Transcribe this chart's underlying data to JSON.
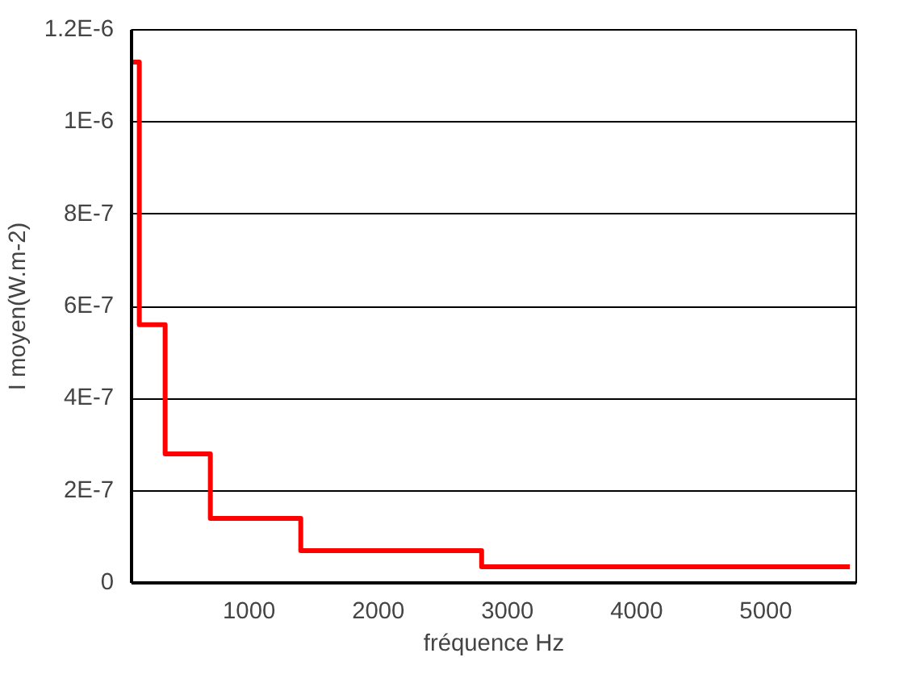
{
  "chart_data": {
    "type": "step",
    "xlabel": "fréquence Hz",
    "ylabel": "I moyen(W.m-2)",
    "x": [
      90,
      150,
      350,
      700,
      1400,
      2800,
      5650
    ],
    "series": [
      {
        "color": "#ff0000",
        "values": [
          1.13e-06,
          5.6e-07,
          2.8e-07,
          1.4e-07,
          7e-08,
          3.5e-08,
          3.5e-08
        ]
      }
    ],
    "xlim": [
      90,
      5700
    ],
    "xticks": [
      1000,
      2000,
      3000,
      4000,
      5000
    ],
    "ylim": [
      0,
      1.2e-06
    ],
    "yticks": [
      {
        "value": 0,
        "label": "0"
      },
      {
        "value": 2e-07,
        "label": "2E-7"
      },
      {
        "value": 4e-07,
        "label": "4E-7"
      },
      {
        "value": 6e-07,
        "label": "6E-7"
      },
      {
        "value": 8e-07,
        "label": "8E-7"
      },
      {
        "value": 1e-06,
        "label": "1E-6"
      },
      {
        "value": 1.2e-06,
        "label": "1.2E-6"
      }
    ],
    "grid": "y",
    "marker": "none",
    "line_style": "solid"
  }
}
